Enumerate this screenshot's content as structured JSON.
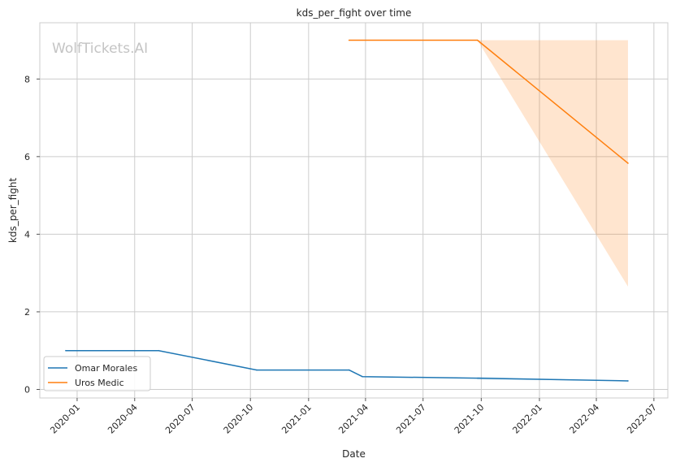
{
  "chart_data": {
    "type": "line",
    "title": "kds_per_fight over time",
    "xlabel": "Date",
    "ylabel": "kds_per_fight",
    "watermark": "WolfTickets.AI",
    "x_ticks": [
      "2020-01",
      "2020-04",
      "2020-07",
      "2020-10",
      "2021-01",
      "2021-04",
      "2021-07",
      "2021-10",
      "2022-01",
      "2022-04",
      "2022-07"
    ],
    "y_ticks": [
      0,
      2,
      4,
      6,
      8
    ],
    "xlim": [
      "2019-11-03",
      "2022-07-23"
    ],
    "ylim": [
      -0.22,
      9.45
    ],
    "grid": true,
    "legend_position": "lower-left",
    "series": [
      {
        "name": "Omar Morales",
        "color": "#1f77b4",
        "points": [
          {
            "date": "2019-12-14",
            "value": 1.0
          },
          {
            "date": "2020-05-09",
            "value": 1.0
          },
          {
            "date": "2020-10-11",
            "value": 0.5
          },
          {
            "date": "2021-03-06",
            "value": 0.5
          },
          {
            "date": "2021-03-27",
            "value": 0.33
          },
          {
            "date": "2021-09-25",
            "value": 0.29
          },
          {
            "date": "2022-05-21",
            "value": 0.22
          }
        ],
        "band": [
          {
            "date": "2021-09-25",
            "low": 0.26,
            "high": 0.32
          },
          {
            "date": "2022-05-21",
            "low": 0.22,
            "high": 0.22
          }
        ]
      },
      {
        "name": "Uros Medic",
        "color": "#ff7f0e",
        "points": [
          {
            "date": "2021-03-06",
            "value": 9.0
          },
          {
            "date": "2021-09-25",
            "value": 9.0
          },
          {
            "date": "2022-05-21",
            "value": 5.83
          }
        ],
        "band": [
          {
            "date": "2021-09-25",
            "low": 9.0,
            "high": 9.0
          },
          {
            "date": "2022-05-21",
            "low": 2.65,
            "high": 9.0
          }
        ]
      }
    ]
  }
}
